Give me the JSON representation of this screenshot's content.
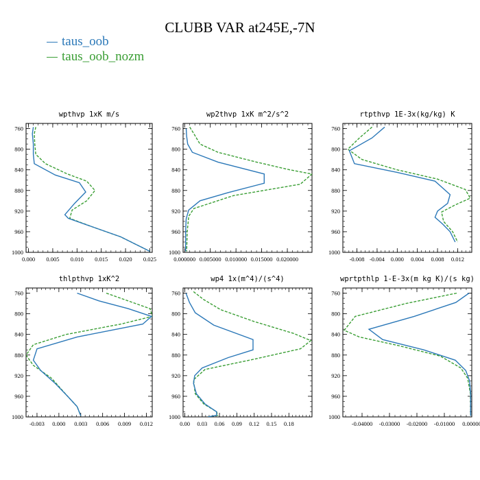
{
  "title": "CLUBB VAR at245E,-7N",
  "legend": [
    {
      "label": "taus_oob",
      "color": "#2b78b8"
    },
    {
      "label": "taus_oob_nozm",
      "color": "#3a9e34",
      "dashed": true
    }
  ],
  "chart_data": [
    {
      "type": "line",
      "title": "wpthvp  1xK m/s",
      "xlim": [
        -0.0005,
        0.0255
      ],
      "ylim": [
        1000,
        750
      ],
      "yticks": [
        760,
        800,
        840,
        880,
        920,
        960,
        1000
      ],
      "xticks": [
        0.0,
        0.005,
        0.01,
        0.015,
        0.02,
        0.025
      ],
      "xticklabels": [
        "0.000",
        "0.005",
        "0.010",
        "0.015",
        "0.020",
        "0.025"
      ],
      "series": [
        {
          "name": "taus_oob",
          "x": [
            0.001,
            0.0008,
            0.001,
            0.001,
            0.0012,
            0.0055,
            0.0105,
            0.0118,
            0.0095,
            0.0075,
            0.0082,
            0.013,
            0.019,
            0.025
          ],
          "y": [
            757,
            770,
            790,
            810,
            828,
            850,
            865,
            883,
            905,
            927,
            934,
            950,
            970,
            998
          ]
        },
        {
          "name": "taus_oob_nozm",
          "x": [
            0.0015,
            0.0012,
            0.0013,
            0.0015,
            0.0035,
            0.008,
            0.012,
            0.0137,
            0.012,
            0.009,
            0.0085,
            0.013,
            0.019,
            0.025
          ],
          "y": [
            757,
            770,
            790,
            810,
            828,
            848,
            862,
            880,
            900,
            918,
            934,
            950,
            970,
            998
          ]
        }
      ]
    },
    {
      "type": "line",
      "title": "wp2thvp  1xK m^2/s^2",
      "xlim": [
        -0.0003,
        0.0248
      ],
      "ylim": [
        1000,
        750
      ],
      "yticks": [
        760,
        800,
        840,
        880,
        920,
        960,
        1000
      ],
      "xticks": [
        0.0,
        0.005,
        0.01,
        0.015,
        0.02
      ],
      "xticklabels": [
        "0.000000",
        "0.005000",
        "0.010000",
        "0.015000",
        "0.020000"
      ],
      "series": [
        {
          "name": "taus_oob",
          "x": [
            0.0003,
            0.0004,
            0.0006,
            0.0015,
            0.0065,
            0.0155,
            0.0155,
            0.0085,
            0.003,
            0.0008,
            0.0003,
            0.0002,
            0.0002
          ],
          "y": [
            760,
            775,
            790,
            806,
            825,
            848,
            866,
            884,
            900,
            918,
            935,
            960,
            998
          ]
        },
        {
          "name": "taus_oob_nozm",
          "x": [
            0.001,
            0.0018,
            0.003,
            0.0065,
            0.014,
            0.0205,
            0.0248,
            0.0225,
            0.0095,
            0.0018,
            0.0008,
            0.0005,
            0.0004
          ],
          "y": [
            757,
            770,
            790,
            806,
            825,
            840,
            848,
            868,
            890,
            915,
            930,
            960,
            998
          ]
        }
      ]
    },
    {
      "type": "line",
      "title": "rtpthvp  1E-3x(kg/kg) K",
      "xlim": [
        -0.0108,
        0.0148
      ],
      "ylim": [
        1000,
        750
      ],
      "yticks": [
        760,
        800,
        840,
        880,
        920,
        960,
        1000
      ],
      "xticks": [
        -0.008,
        -0.004,
        0.0,
        0.004,
        0.008,
        0.012
      ],
      "xticklabels": [
        "-0.008",
        "-0.004",
        "0.000",
        "0.004",
        "0.008",
        "0.012"
      ],
      "series": [
        {
          "name": "taus_oob",
          "x": [
            -0.0025,
            -0.005,
            -0.0095,
            -0.0085,
            0.0,
            0.0075,
            0.0105,
            0.01,
            0.008,
            0.0075,
            0.009,
            0.0105,
            0.0115
          ],
          "y": [
            757,
            778,
            803,
            828,
            845,
            862,
            888,
            905,
            920,
            932,
            945,
            960,
            980
          ]
        },
        {
          "name": "taus_oob_nozm",
          "x": [
            -0.005,
            -0.0075,
            -0.0098,
            -0.007,
            0.0,
            0.008,
            0.0135,
            0.0145,
            0.0115,
            0.0088,
            0.0092,
            0.011,
            0.012
          ],
          "y": [
            757,
            778,
            800,
            820,
            840,
            858,
            878,
            895,
            908,
            922,
            940,
            960,
            980
          ]
        }
      ]
    },
    {
      "type": "line",
      "title": "thlpthvp  1xK^2",
      "xlim": [
        -0.0045,
        0.0128
      ],
      "ylim": [
        1000,
        750
      ],
      "yticks": [
        760,
        800,
        840,
        880,
        920,
        960,
        1000
      ],
      "xticks": [
        -0.003,
        0.0,
        0.003,
        0.006,
        0.009,
        0.012
      ],
      "xticklabels": [
        "-0.003",
        "0.000",
        "0.003",
        "0.006",
        "0.009",
        "0.012"
      ],
      "series": [
        {
          "name": "taus_oob",
          "x": [
            0.0025,
            0.0055,
            0.0095,
            0.0127,
            0.0115,
            0.0025,
            -0.003,
            -0.0035,
            -0.0025,
            -0.0005,
            0.0012,
            0.0025,
            0.003
          ],
          "y": [
            760,
            775,
            790,
            805,
            820,
            845,
            868,
            890,
            910,
            935,
            960,
            980,
            998
          ]
        },
        {
          "name": "taus_oob_nozm",
          "x": [
            0.0065,
            0.0095,
            0.0125,
            0.0128,
            0.0085,
            0.001,
            -0.0035,
            -0.0045,
            -0.0035,
            -0.001,
            0.0012,
            0.0025,
            0.003
          ],
          "y": [
            760,
            775,
            790,
            805,
            820,
            840,
            860,
            880,
            900,
            925,
            960,
            980,
            998
          ]
        }
      ]
    },
    {
      "type": "line",
      "title": "wp4  1x(m^4)/(s^4)",
      "xlim": [
        -0.003,
        0.22
      ],
      "ylim": [
        1000,
        750
      ],
      "yticks": [
        760,
        800,
        840,
        880,
        920,
        960,
        1000
      ],
      "xticks": [
        0.0,
        0.03,
        0.06,
        0.09,
        0.12,
        0.15,
        0.18
      ],
      "xticklabels": [
        "0.00",
        "0.03",
        "0.06",
        "0.09",
        "0.12",
        "0.15",
        "0.18"
      ],
      "series": [
        {
          "name": "taus_oob",
          "x": [
            0.002,
            0.008,
            0.018,
            0.05,
            0.118,
            0.118,
            0.075,
            0.03,
            0.017,
            0.015,
            0.02,
            0.035,
            0.055,
            0.055,
            0.04
          ],
          "y": [
            760,
            778,
            798,
            822,
            850,
            870,
            885,
            905,
            920,
            935,
            955,
            975,
            990,
            997,
            1000
          ]
        },
        {
          "name": "taus_oob_nozm",
          "x": [
            0.015,
            0.032,
            0.062,
            0.12,
            0.188,
            0.218,
            0.2,
            0.12,
            0.035,
            0.015,
            0.018,
            0.033,
            0.055,
            0.057,
            0.04
          ],
          "y": [
            757,
            772,
            792,
            815,
            838,
            852,
            868,
            888,
            908,
            928,
            955,
            975,
            990,
            997,
            1000
          ]
        }
      ]
    },
    {
      "type": "line",
      "title": "wprtpthlp  1-E-3x(m kg K)/(s kg)",
      "xlim": [
        -0.047,
        0.0
      ],
      "ylim": [
        1000,
        750
      ],
      "yticks": [
        760,
        800,
        840,
        880,
        920,
        960,
        1000
      ],
      "xticks": [
        -0.04,
        -0.03,
        -0.02,
        -0.01,
        0.0
      ],
      "xticklabels": [
        "-0.04000",
        "-0.03000",
        "-0.02000",
        "-0.01000",
        "0.00000"
      ],
      "series": [
        {
          "name": "taus_oob",
          "x": [
            -0.001,
            -0.0058,
            -0.021,
            -0.0375,
            -0.0325,
            -0.0175,
            -0.006,
            -0.0022,
            -0.0008,
            -0.0004,
            -0.0004
          ],
          "y": [
            760,
            778,
            805,
            830,
            850,
            870,
            890,
            910,
            930,
            955,
            998
          ]
        },
        {
          "name": "taus_oob_nozm",
          "x": [
            -0.0055,
            -0.024,
            -0.0425,
            -0.0465,
            -0.041,
            -0.0265,
            -0.0115,
            -0.004,
            -0.0015,
            -0.0005,
            -0.0004
          ],
          "y": [
            760,
            780,
            805,
            832,
            845,
            862,
            882,
            905,
            925,
            955,
            998
          ]
        }
      ]
    }
  ]
}
